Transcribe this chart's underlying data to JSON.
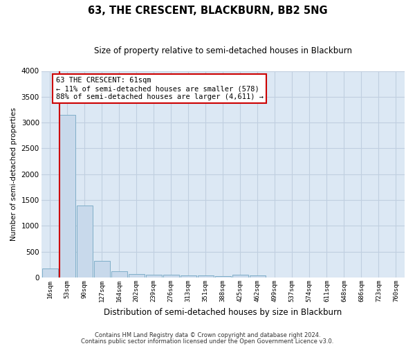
{
  "title": "63, THE CRESCENT, BLACKBURN, BB2 5NG",
  "subtitle": "Size of property relative to semi-detached houses in Blackburn",
  "xlabel": "Distribution of semi-detached houses by size in Blackburn",
  "ylabel": "Number of semi-detached properties",
  "annotation_title": "63 THE CRESCENT: 61sqm",
  "annotation_line1": "← 11% of semi-detached houses are smaller (578)",
  "annotation_line2": "88% of semi-detached houses are larger (4,611) →",
  "footer1": "Contains HM Land Registry data © Crown copyright and database right 2024.",
  "footer2": "Contains public sector information licensed under the Open Government Licence v3.0.",
  "bar_labels": [
    "16sqm",
    "53sqm",
    "90sqm",
    "127sqm",
    "164sqm",
    "202sqm",
    "239sqm",
    "276sqm",
    "313sqm",
    "351sqm",
    "388sqm",
    "425sqm",
    "462sqm",
    "499sqm",
    "537sqm",
    "574sqm",
    "611sqm",
    "648sqm",
    "686sqm",
    "723sqm",
    "760sqm"
  ],
  "bar_values": [
    180,
    3150,
    1390,
    320,
    120,
    65,
    55,
    50,
    45,
    40,
    35,
    50,
    40,
    5,
    3,
    2,
    2,
    2,
    2,
    2,
    2
  ],
  "bar_color": "#c8d9eb",
  "bar_edge_color": "#7faec8",
  "vline_color": "#cc0000",
  "vline_bar_index": 1,
  "grid_color": "#c0cfe0",
  "bg_color": "#dce8f4",
  "ylim": [
    0,
    4000
  ],
  "yticks": [
    0,
    500,
    1000,
    1500,
    2000,
    2500,
    3000,
    3500,
    4000
  ]
}
